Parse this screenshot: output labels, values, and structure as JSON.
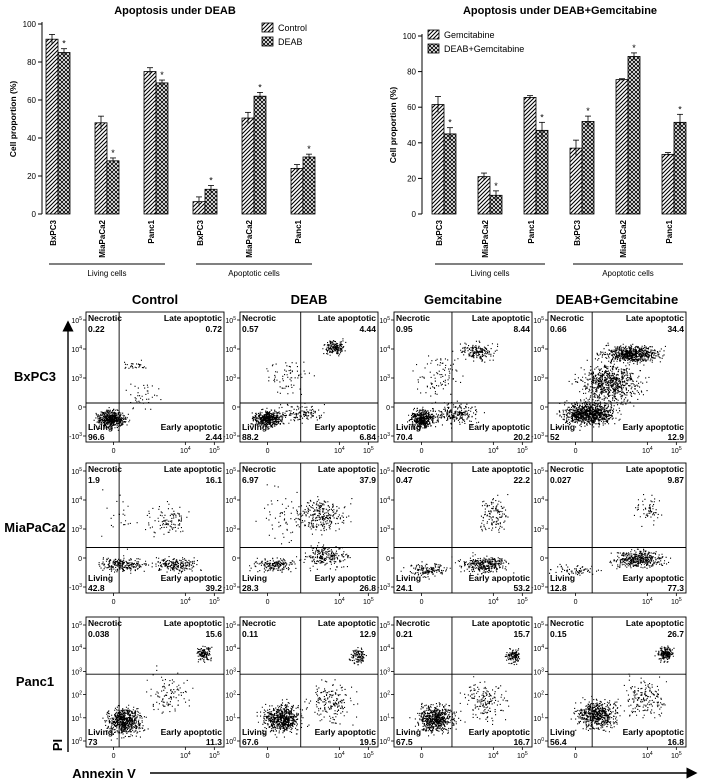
{
  "chart_data": [
    {
      "type": "bar",
      "title": "Apoptosis under DEAB",
      "ylabel": "Cell proportion (%)",
      "ylim": [
        0,
        100
      ],
      "yticks": [
        0,
        20,
        40,
        60,
        80,
        100
      ],
      "categories": [
        "BxPC3",
        "MiaPaCa2",
        "Panc1",
        "BxPC3",
        "MiaPaCa2",
        "Panc1"
      ],
      "groups": [
        {
          "label": "Living cells",
          "span": [
            0,
            2
          ]
        },
        {
          "label": "Apoptotic cells",
          "span": [
            3,
            5
          ]
        }
      ],
      "legend_position": "top-right",
      "series": [
        {
          "name": "Control",
          "pattern": "hatch",
          "values": [
            92,
            48,
            75,
            6.5,
            50.5,
            24
          ],
          "errors": [
            2.5,
            3.5,
            2,
            2.5,
            3,
            2
          ]
        },
        {
          "name": "DEAB",
          "pattern": "checker",
          "values": [
            85,
            28,
            69,
            13,
            62,
            30
          ],
          "errors": [
            2,
            1.5,
            1.5,
            2,
            2,
            1.5
          ]
        }
      ],
      "significance": [
        [
          false,
          true
        ],
        [
          false,
          true
        ],
        [
          false,
          true
        ],
        [
          false,
          true
        ],
        [
          false,
          true
        ],
        [
          false,
          true
        ]
      ],
      "significance_mark": "*"
    },
    {
      "type": "bar",
      "title": "Apoptosis under DEAB+Gemcitabine",
      "ylabel": "Cell proportion (%)",
      "ylim": [
        0,
        100
      ],
      "yticks": [
        0,
        20,
        40,
        60,
        80,
        100
      ],
      "categories": [
        "BxPC3",
        "MiaPaCa2",
        "Panc1",
        "BxPC3",
        "MiaPaCa2",
        "Panc1"
      ],
      "groups": [
        {
          "label": "Living cells",
          "span": [
            0,
            2
          ]
        },
        {
          "label": "Apoptotic cells",
          "span": [
            3,
            5
          ]
        }
      ],
      "legend_position": "top-left",
      "series": [
        {
          "name": "Gemcitabine",
          "pattern": "hatch",
          "values": [
            61.5,
            21,
            65.5,
            37,
            75.5,
            33.5
          ],
          "errors": [
            4.5,
            2,
            1,
            4.5,
            0.5,
            1
          ]
        },
        {
          "name": "DEAB+Gemcitabine",
          "pattern": "checker",
          "values": [
            45,
            10.5,
            47,
            52,
            88.5,
            51.5
          ],
          "errors": [
            3.5,
            2.5,
            4.5,
            3,
            2,
            4.5
          ]
        }
      ],
      "significance": [
        [
          false,
          true
        ],
        [
          false,
          true
        ],
        [
          false,
          true
        ],
        [
          false,
          true
        ],
        [
          false,
          true
        ],
        [
          false,
          true
        ]
      ],
      "significance_mark": "*"
    },
    {
      "type": "scatter",
      "subtype": "flow-cytometry-quadrant-grid",
      "xlabel": "Annexin V",
      "ylabel": "PI",
      "columns": [
        "Control",
        "DEAB",
        "Gemcitabine",
        "DEAB+Gemcitabine"
      ],
      "rows": [
        "BxPC3",
        "MiaPaCa2",
        "Panc1"
      ],
      "quadrant_labels": {
        "ul": "Necrotic",
        "ur": "Late apoptotic",
        "ll": "Living",
        "lr": "Early apoptotic"
      },
      "tick_labels": {
        "x": [
          "0",
          "10^4",
          "10^5"
        ],
        "y_top": [
          "10^5",
          "10^4",
          "10^3",
          "0",
          "-10^3"
        ],
        "y_bottom": [
          "10^5",
          "10^4",
          "10^3",
          "10^2",
          "10^1",
          "10^0"
        ]
      },
      "panels": [
        [
          {
            "necrotic": "0.22",
            "late": "0.72",
            "living": "96.6",
            "early": "2.44"
          },
          {
            "necrotic": "0.57",
            "late": "4.44",
            "living": "88.2",
            "early": "6.84"
          },
          {
            "necrotic": "0.95",
            "late": "8.44",
            "living": "70.4",
            "early": "20.2"
          },
          {
            "necrotic": "0.66",
            "late": "34.4",
            "living": "52",
            "early": "12.9"
          }
        ],
        [
          {
            "necrotic": "1.9",
            "late": "16.1",
            "living": "42.8",
            "early": "39.2"
          },
          {
            "necrotic": "6.97",
            "late": "37.9",
            "living": "28.3",
            "early": "26.8"
          },
          {
            "necrotic": "0.47",
            "late": "22.2",
            "living": "24.1",
            "early": "53.2"
          },
          {
            "necrotic": "0.027",
            "late": "9.87",
            "living": "12.8",
            "early": "77.3"
          }
        ],
        [
          {
            "necrotic": "0.038",
            "late": "15.6",
            "living": "73",
            "early": "11.3"
          },
          {
            "necrotic": "0.11",
            "late": "12.9",
            "living": "67.6",
            "early": "19.5"
          },
          {
            "necrotic": "0.21",
            "late": "15.7",
            "living": "67.5",
            "early": "16.7"
          },
          {
            "necrotic": "0.15",
            "late": "26.7",
            "living": "56.4",
            "early": "16.8"
          }
        ]
      ]
    }
  ]
}
